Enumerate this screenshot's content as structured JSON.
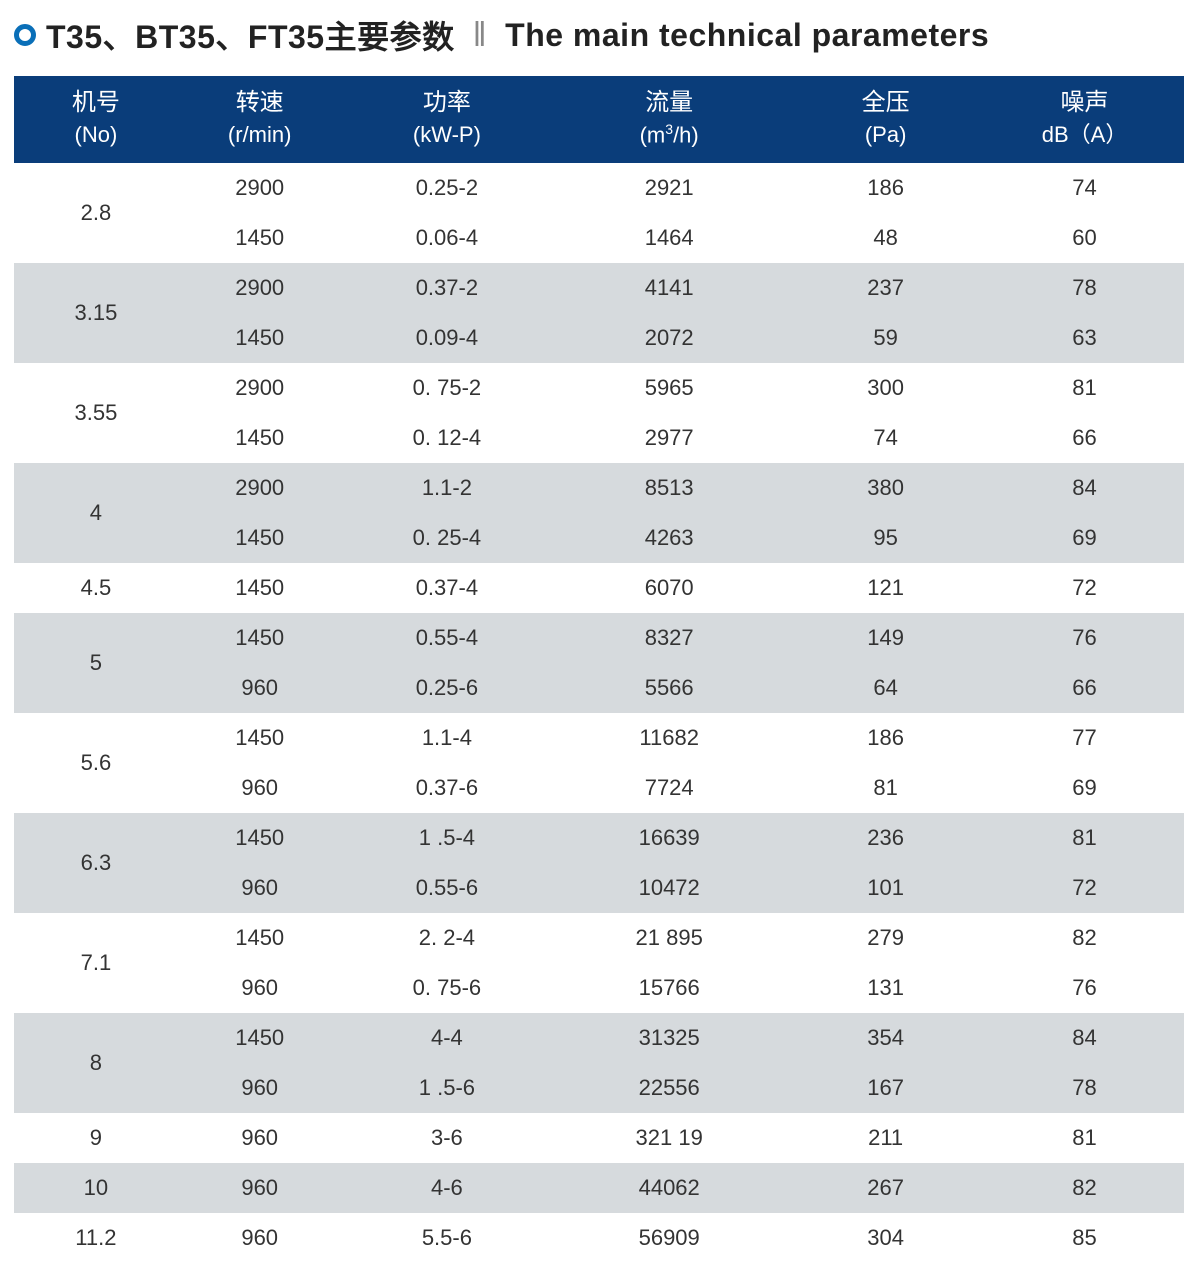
{
  "title": {
    "cn": "T35、BT35、FT35主要参数",
    "separator": "‖",
    "en": "The main technical parameters"
  },
  "colors": {
    "header_bg": "#0a3d7a",
    "header_text": "#ffffff",
    "row_alt_bg": "#d6dadd",
    "row_bg": "#ffffff",
    "bullet_border": "#0a6fb8",
    "text": "#2a2a2a"
  },
  "columns": [
    {
      "cn": "机号",
      "en": "(No)"
    },
    {
      "cn": "转速",
      "en": "(r/min)"
    },
    {
      "cn": "功率",
      "en": "(kW-P)"
    },
    {
      "cn": "流量",
      "en_is_html": true,
      "en": "(m<sup>3</sup>/h)"
    },
    {
      "cn": "全压",
      "en": "(Pa)"
    },
    {
      "cn": "噪声",
      "en": "dB（A）"
    }
  ],
  "groups": [
    {
      "no": "2.8",
      "alt": false,
      "rows": [
        {
          "speed": "2900",
          "power": "0.25-2",
          "flow": "2921",
          "press": "186",
          "noise": "74"
        },
        {
          "speed": "1450",
          "power": "0.06-4",
          "flow": "1464",
          "press": "48",
          "noise": "60"
        }
      ]
    },
    {
      "no": "3.15",
      "alt": true,
      "rows": [
        {
          "speed": "2900",
          "power": "0.37-2",
          "flow": "4141",
          "press": "237",
          "noise": "78"
        },
        {
          "speed": "1450",
          "power": "0.09-4",
          "flow": "2072",
          "press": "59",
          "noise": "63"
        }
      ]
    },
    {
      "no": "3.55",
      "alt": false,
      "rows": [
        {
          "speed": "2900",
          "power": "0. 75-2",
          "flow": "5965",
          "press": "300",
          "noise": "81"
        },
        {
          "speed": "1450",
          "power": "0. 12-4",
          "flow": "2977",
          "press": "74",
          "noise": "66"
        }
      ]
    },
    {
      "no": "4",
      "alt": true,
      "rows": [
        {
          "speed": "2900",
          "power": "1.1-2",
          "flow": "8513",
          "press": "380",
          "noise": "84"
        },
        {
          "speed": "1450",
          "power": "0. 25-4",
          "flow": "4263",
          "press": "95",
          "noise": "69"
        }
      ]
    },
    {
      "no": "4.5",
      "alt": false,
      "rows": [
        {
          "speed": "1450",
          "power": "0.37-4",
          "flow": "6070",
          "press": "121",
          "noise": "72"
        }
      ]
    },
    {
      "no": "5",
      "alt": true,
      "rows": [
        {
          "speed": "1450",
          "power": "0.55-4",
          "flow": "8327",
          "press": "149",
          "noise": "76"
        },
        {
          "speed": "960",
          "power": "0.25-6",
          "flow": "5566",
          "press": "64",
          "noise": "66"
        }
      ]
    },
    {
      "no": "5.6",
      "alt": false,
      "rows": [
        {
          "speed": "1450",
          "power": "1.1-4",
          "flow": "11682",
          "press": "186",
          "noise": "77"
        },
        {
          "speed": "960",
          "power": "0.37-6",
          "flow": "7724",
          "press": "81",
          "noise": "69"
        }
      ]
    },
    {
      "no": "6.3",
      "alt": true,
      "rows": [
        {
          "speed": "1450",
          "power": "1 .5-4",
          "flow": "16639",
          "press": "236",
          "noise": "81"
        },
        {
          "speed": "960",
          "power": "0.55-6",
          "flow": "10472",
          "press": "101",
          "noise": "72"
        }
      ]
    },
    {
      "no": "7.1",
      "alt": false,
      "rows": [
        {
          "speed": "1450",
          "power": "2. 2-4",
          "flow": "21 895",
          "press": "279",
          "noise": "82"
        },
        {
          "speed": "960",
          "power": "0. 75-6",
          "flow": "15766",
          "press": "131",
          "noise": "76"
        }
      ]
    },
    {
      "no": "8",
      "alt": true,
      "rows": [
        {
          "speed": "1450",
          "power": "4-4",
          "flow": "31325",
          "press": "354",
          "noise": "84"
        },
        {
          "speed": "960",
          "power": "1 .5-6",
          "flow": "22556",
          "press": "167",
          "noise": "78"
        }
      ]
    },
    {
      "no": "9",
      "alt": false,
      "rows": [
        {
          "speed": "960",
          "power": "3-6",
          "flow": "321 19",
          "press": "211",
          "noise": "81"
        }
      ]
    },
    {
      "no": "10",
      "alt": true,
      "rows": [
        {
          "speed": "960",
          "power": "4-6",
          "flow": "44062",
          "press": "267",
          "noise": "82"
        }
      ]
    },
    {
      "no": "11.2",
      "alt": false,
      "rows": [
        {
          "speed": "960",
          "power": "5.5-6",
          "flow": "56909",
          "press": "304",
          "noise": "85"
        }
      ]
    }
  ]
}
